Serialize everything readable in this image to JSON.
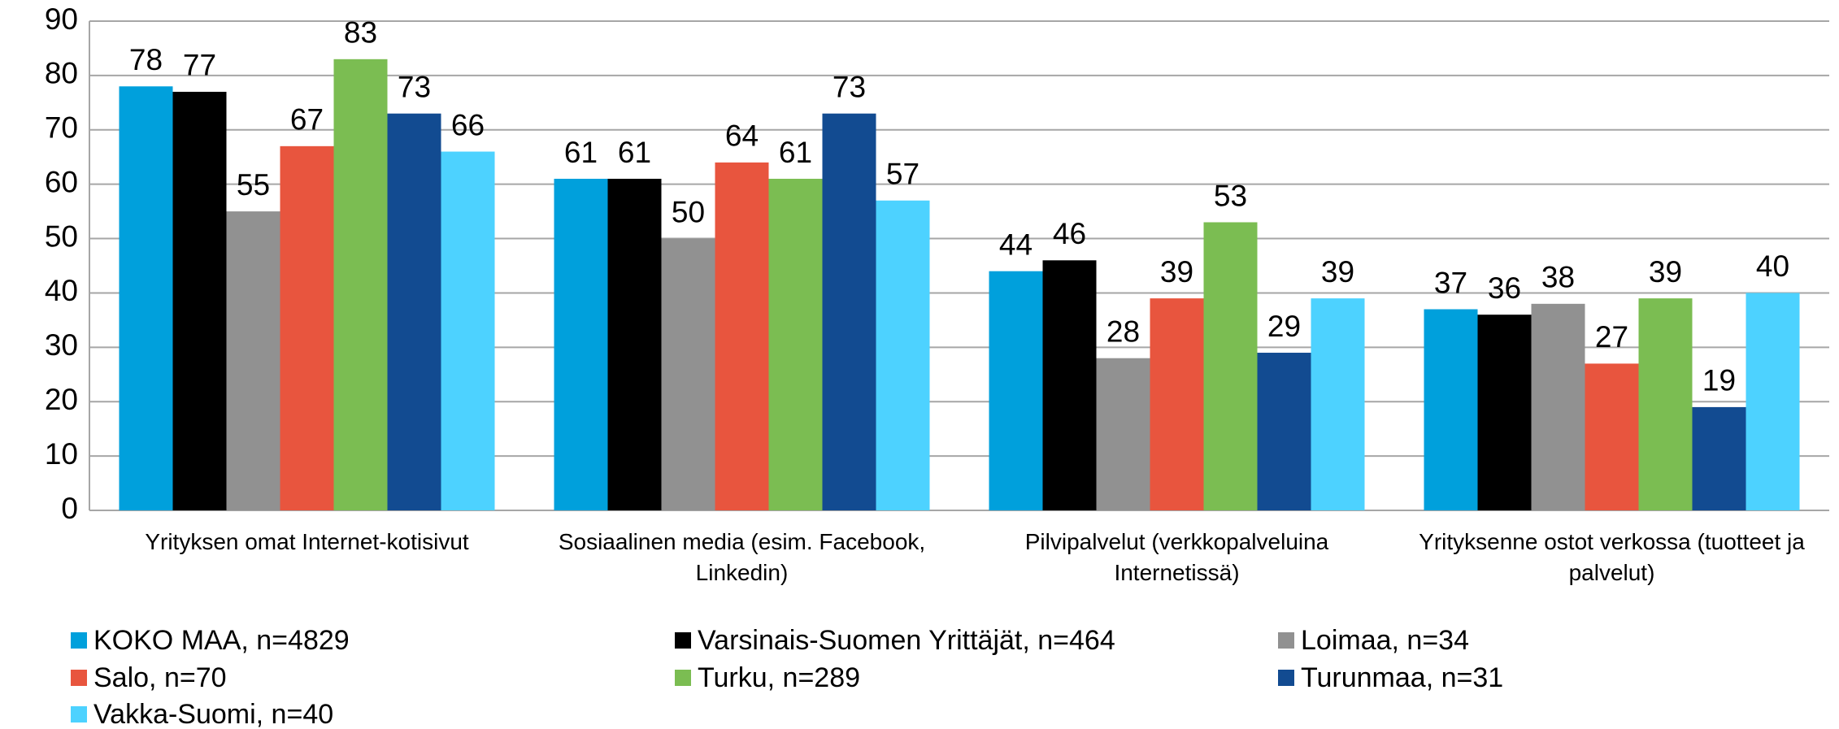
{
  "chart_data": {
    "type": "bar",
    "categories": [
      "Yrityksen omat Internet-kotisivut",
      "Sosiaalinen media (esim. Facebook, Linkedin)",
      "Pilvipalvelut  (verkkopalveluina Internetissä)",
      "Yrityksenne ostot verkossa (tuotteet ja palvelut)"
    ],
    "series": [
      {
        "name": "KOKO MAA, n=4829",
        "color": "#00a0dc",
        "values": [
          78,
          61,
          44,
          37
        ]
      },
      {
        "name": "Varsinais-Suomen Yrittäjät, n=464",
        "color": "#000000",
        "values": [
          77,
          61,
          46,
          36
        ]
      },
      {
        "name": "Loimaa, n=34",
        "color": "#919191",
        "values": [
          55,
          50,
          28,
          38
        ]
      },
      {
        "name": "Salo, n=70",
        "color": "#e8553e",
        "values": [
          67,
          64,
          39,
          27
        ]
      },
      {
        "name": "Turku, n=289",
        "color": "#7bbd52",
        "values": [
          83,
          61,
          53,
          39
        ]
      },
      {
        "name": "Turunmaa, n=31",
        "color": "#124b91",
        "values": [
          73,
          73,
          29,
          19
        ]
      },
      {
        "name": "Vakka-Suomi, n=40",
        "color": "#4dd2ff",
        "values": [
          66,
          57,
          39,
          40
        ]
      }
    ],
    "ylim": [
      0,
      90
    ],
    "yticks": [
      0,
      10,
      20,
      30,
      40,
      50,
      60,
      70,
      80,
      90
    ],
    "grid": true,
    "legend": "bottom"
  }
}
